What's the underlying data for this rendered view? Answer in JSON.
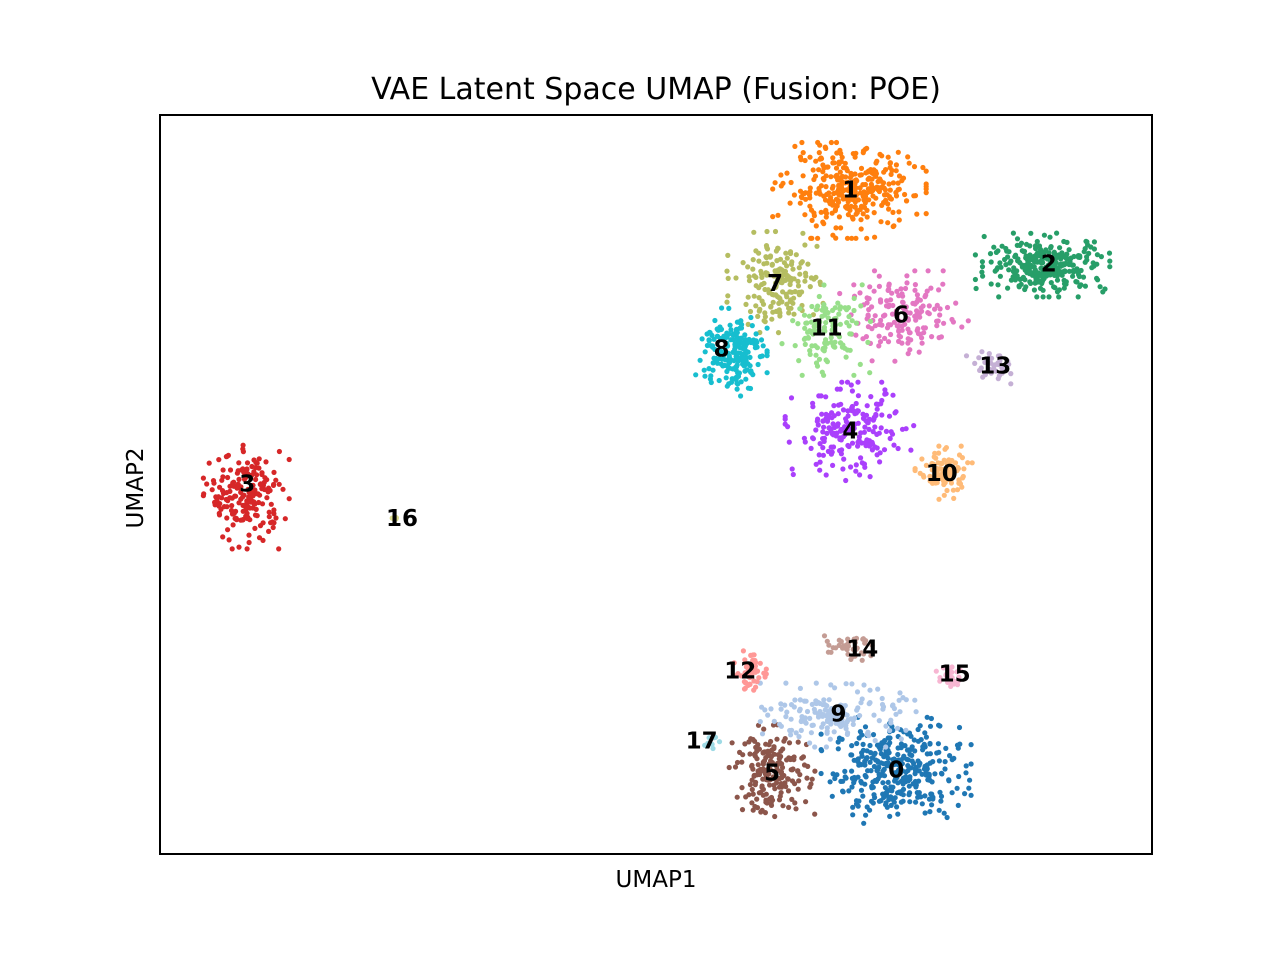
{
  "chart_data": {
    "type": "scatter",
    "title": "VAE Latent Space UMAP (Fusion: POE)",
    "xlabel": "UMAP1",
    "ylabel": "UMAP2",
    "xlim": [
      0,
      100
    ],
    "ylim": [
      0,
      100
    ],
    "grid": false,
    "legend": "on data",
    "ticks": "none",
    "clusters": [
      {
        "label": "0",
        "color": "#1f77b4",
        "center": [
          74.2,
          11.3
        ],
        "spread": [
          4.2,
          4.0
        ],
        "n": 360
      },
      {
        "label": "1",
        "color": "#ff7f0e",
        "center": [
          69.5,
          89.8
        ],
        "spread": [
          4.3,
          3.6
        ],
        "n": 330
      },
      {
        "label": "2",
        "color": "#279e68",
        "center": [
          89.4,
          79.7
        ],
        "spread": [
          4.0,
          2.4
        ],
        "n": 300
      },
      {
        "label": "3",
        "color": "#d62728",
        "center": [
          8.7,
          48.3
        ],
        "spread": [
          2.4,
          3.9
        ],
        "n": 200
      },
      {
        "label": "4",
        "color": "#aa40fc",
        "center": [
          69.5,
          57.0
        ],
        "spread": [
          3.6,
          3.8
        ],
        "n": 200
      },
      {
        "label": "5",
        "color": "#8c564b",
        "center": [
          61.7,
          11.0
        ],
        "spread": [
          2.4,
          3.6
        ],
        "n": 190
      },
      {
        "label": "6",
        "color": "#e377c2",
        "center": [
          75.0,
          72.8
        ],
        "spread": [
          3.6,
          3.4
        ],
        "n": 160
      },
      {
        "label": "7",
        "color": "#b5bd61",
        "center": [
          62.2,
          77.4
        ],
        "spread": [
          2.8,
          3.8
        ],
        "n": 170
      },
      {
        "label": "8",
        "color": "#17becf",
        "center": [
          57.6,
          68.1
        ],
        "spread": [
          2.0,
          3.4
        ],
        "n": 190
      },
      {
        "label": "9",
        "color": "#aec7e8",
        "center": [
          68.3,
          18.8
        ],
        "spread": [
          4.4,
          2.4
        ],
        "n": 170
      },
      {
        "label": "10",
        "color": "#ffbb78",
        "center": [
          79.0,
          51.6
        ],
        "spread": [
          1.6,
          2.0
        ],
        "n": 100
      },
      {
        "label": "11",
        "color": "#98df8a",
        "center": [
          67.2,
          70.9
        ],
        "spread": [
          2.5,
          3.4
        ],
        "n": 120
      },
      {
        "label": "12",
        "color": "#ff9896",
        "center": [
          59.5,
          24.6
        ],
        "spread": [
          0.9,
          1.6
        ],
        "n": 60
      },
      {
        "label": "13",
        "color": "#c5b0d5",
        "center": [
          84.0,
          66.0
        ],
        "spread": [
          1.5,
          1.4
        ],
        "n": 40
      },
      {
        "label": "14",
        "color": "#c49c94",
        "center": [
          69.5,
          27.8
        ],
        "spread": [
          1.6,
          1.0
        ],
        "n": 40
      },
      {
        "label": "15",
        "color": "#f7b6d2",
        "center": [
          79.7,
          23.9
        ],
        "spread": [
          0.8,
          1.0
        ],
        "n": 26
      },
      {
        "label": "16",
        "color": "#dbdb8d",
        "center": [
          23.6,
          45.5
        ],
        "spread": [
          0.2,
          0.15
        ],
        "n": 10
      },
      {
        "label": "17",
        "color": "#9edae5",
        "center": [
          55.5,
          15.2
        ],
        "spread": [
          0.5,
          0.6
        ],
        "n": 8
      }
    ],
    "label_positions": [
      {
        "label": "0",
        "x": 74.2,
        "y": 11.3
      },
      {
        "label": "1",
        "x": 69.6,
        "y": 89.8
      },
      {
        "label": "2",
        "x": 89.6,
        "y": 79.8
      },
      {
        "label": "3",
        "x": 8.8,
        "y": 50.0
      },
      {
        "label": "4",
        "x": 69.6,
        "y": 57.2
      },
      {
        "label": "5",
        "x": 61.7,
        "y": 10.9
      },
      {
        "label": "6",
        "x": 74.7,
        "y": 72.9
      },
      {
        "label": "7",
        "x": 62.0,
        "y": 77.1
      },
      {
        "label": "8",
        "x": 56.6,
        "y": 68.3
      },
      {
        "label": "9",
        "x": 68.4,
        "y": 18.9
      },
      {
        "label": "10",
        "x": 78.8,
        "y": 51.4
      },
      {
        "label": "11",
        "x": 67.2,
        "y": 71.1
      },
      {
        "label": "12",
        "x": 58.5,
        "y": 24.7
      },
      {
        "label": "13",
        "x": 84.2,
        "y": 66.0
      },
      {
        "label": "14",
        "x": 70.8,
        "y": 27.7
      },
      {
        "label": "15",
        "x": 80.1,
        "y": 24.3
      },
      {
        "label": "16",
        "x": 24.4,
        "y": 45.3
      },
      {
        "label": "17",
        "x": 54.6,
        "y": 15.2
      }
    ]
  }
}
